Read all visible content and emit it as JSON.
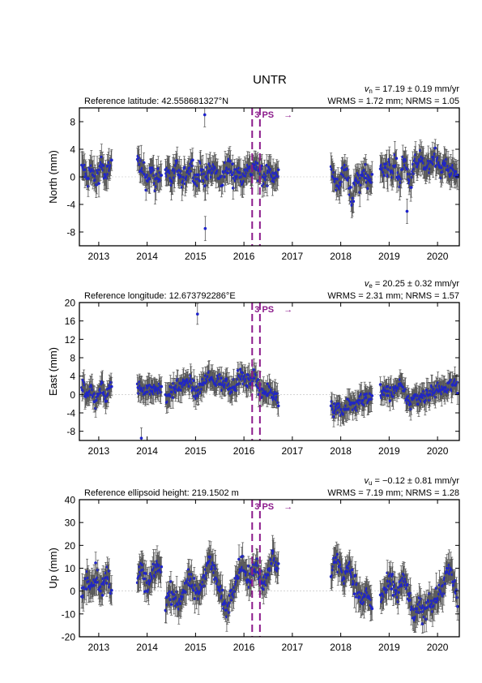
{
  "station": "UNTR",
  "colors": {
    "point_fill": "#1f1fd6",
    "point_edge": "#2233aa",
    "errorbar": "#555555",
    "event_line": "#8b1a8b",
    "zero_line": "#bbbbbb",
    "axis": "#000000"
  },
  "event_label": "3 PS",
  "event_arrow": "→",
  "chart_data": [
    {
      "type": "scatter",
      "component": "north",
      "ylabel": "North (mm)",
      "ref_label": "Reference latitude: 42.558681327°N",
      "velocity_symbol": "v",
      "velocity_subscript": "n",
      "velocity_text": " = 17.19 ± 0.19 mm/yr",
      "stats_text": "WRMS = 1.72 mm; NRMS = 1.05",
      "ylim": [
        -10,
        10
      ],
      "yticks": [
        -8,
        -4,
        0,
        4,
        8
      ],
      "xlim": [
        2012.6,
        2020.45
      ],
      "xticks": [
        2013,
        2014,
        2015,
        2016,
        2017,
        2018,
        2019,
        2020
      ],
      "xticklabels": [
        "2013",
        "2014",
        "2015",
        "2016",
        "2017",
        "2018",
        "2019",
        "2020"
      ],
      "event_lines": [
        2016.17,
        2016.33
      ],
      "data_segments": [
        {
          "start": 2012.65,
          "end": 2013.27,
          "values": [
            1.0,
            1.5,
            0.0,
            -0.5,
            0.8,
            1.0,
            0.2,
            -1.0,
            0.5,
            1.2,
            2.5,
            0.5,
            -0.8,
            1.0,
            2.0,
            1.8
          ]
        },
        {
          "start": 2013.8,
          "end": 2014.3,
          "values": [
            2.5,
            1.5,
            0.5,
            1.0,
            -0.5,
            0.0,
            1.0,
            0.5,
            -1.0,
            0.0,
            0.5,
            0.0
          ]
        },
        {
          "start": 2014.38,
          "end": 2016.72,
          "values": [
            0.5,
            1.0,
            -0.5,
            0.2,
            1.5,
            0.0,
            -1.0,
            0.5,
            1.0,
            2.0,
            0.0,
            -0.5,
            1.2,
            0.5,
            -0.5,
            1.0,
            0.5,
            1.5,
            0.0,
            -0.8,
            0.5,
            1.0,
            2.0,
            0.5,
            0.0,
            1.0,
            -0.5,
            0.8,
            1.5,
            0.5,
            1.0,
            2.0,
            0.0,
            1.0,
            -1.0,
            0.5,
            1.5,
            0.0,
            0.5,
            1.0
          ]
        },
        {
          "start": 2017.8,
          "end": 2018.65,
          "values": [
            1.0,
            0.0,
            -1.5,
            -1.0,
            -0.5,
            0.5,
            1.0,
            -0.5,
            -2.0,
            -3.5,
            -1.0,
            0.0,
            -1.5,
            0.5,
            1.0,
            -0.5,
            0.0,
            -1.0
          ]
        },
        {
          "start": 2018.82,
          "end": 2020.42,
          "values": [
            1.0,
            1.5,
            2.0,
            0.5,
            1.5,
            1.0,
            2.0,
            0.0,
            -0.5,
            1.5,
            2.0,
            0.5,
            -1.0,
            1.0,
            2.0,
            1.5,
            3.0,
            2.0,
            1.0,
            1.5,
            0.5,
            2.5,
            3.0,
            2.0,
            1.0,
            0.5,
            2.0,
            1.5,
            0.0,
            1.0,
            1.0,
            0.0
          ]
        }
      ],
      "outliers": [
        {
          "x": 2015.19,
          "y": 9.0
        },
        {
          "x": 2015.2,
          "y": -7.5
        },
        {
          "x": 2019.37,
          "y": -5.0
        }
      ],
      "noise": 1.8,
      "err": [
        1.2,
        2.2
      ]
    },
    {
      "type": "scatter",
      "component": "east",
      "ylabel": "East (mm)",
      "ref_label": "Reference longitude: 12.673792286°E",
      "velocity_symbol": "v",
      "velocity_subscript": "e",
      "velocity_text": " = 20.25 ± 0.32 mm/yr",
      "stats_text": "WRMS = 2.31 mm; NRMS = 1.57",
      "ylim": [
        -10,
        20
      ],
      "yticks": [
        -8,
        -4,
        0,
        4,
        8,
        12,
        16,
        20
      ],
      "xlim": [
        2012.6,
        2020.45
      ],
      "xticks": [
        2013,
        2014,
        2015,
        2016,
        2017,
        2018,
        2019,
        2020
      ],
      "xticklabels": [
        "2013",
        "2014",
        "2015",
        "2016",
        "2017",
        "2018",
        "2019",
        "2020"
      ],
      "event_lines": [
        2016.17,
        2016.33
      ],
      "data_segments": [
        {
          "start": 2012.65,
          "end": 2013.27,
          "values": [
            0.5,
            1.5,
            0.0,
            -1.0,
            0.5,
            1.0,
            -0.5,
            -1.5,
            0.0,
            1.0,
            2.0,
            0.0,
            -1.0,
            0.5,
            1.5,
            1.0
          ]
        },
        {
          "start": 2013.8,
          "end": 2014.3,
          "values": [
            1.0,
            2.0,
            1.0,
            0.5,
            1.5,
            2.0,
            1.0,
            0.5,
            1.5,
            1.0,
            2.0,
            1.0
          ]
        },
        {
          "start": 2014.38,
          "end": 2016.72,
          "values": [
            -1.0,
            0.0,
            1.0,
            0.5,
            2.0,
            1.5,
            2.5,
            2.0,
            3.0,
            2.0,
            1.0,
            0.0,
            1.5,
            2.5,
            3.0,
            4.0,
            3.0,
            2.5,
            3.5,
            2.5,
            2.0,
            3.0,
            2.0,
            1.5,
            2.5,
            3.0,
            4.0,
            3.5,
            2.5,
            3.0,
            4.0,
            3.5,
            2.0,
            1.0,
            0.5,
            0.0,
            1.0,
            -0.5,
            0.0,
            -1.0
          ]
        },
        {
          "start": 2017.8,
          "end": 2018.65,
          "values": [
            -2.0,
            -3.0,
            -3.5,
            -2.5,
            -3.0,
            -4.0,
            -3.0,
            -2.0,
            -1.5,
            -2.5,
            -3.0,
            -2.0,
            -1.0,
            -1.5,
            -0.5,
            -1.0,
            0.0,
            -0.5
          ]
        },
        {
          "start": 2018.82,
          "end": 2020.42,
          "values": [
            0.5,
            0.0,
            0.5,
            1.0,
            0.0,
            0.5,
            1.5,
            1.0,
            2.0,
            1.0,
            0.0,
            -1.0,
            -2.0,
            -1.0,
            -0.5,
            -1.0,
            -0.5,
            0.0,
            -0.5,
            0.5,
            0.0,
            1.0,
            0.5,
            1.5,
            1.0,
            0.5,
            1.0,
            2.0,
            2.5,
            1.5,
            2.5,
            1.0
          ]
        }
      ],
      "outliers": [
        {
          "x": 2015.04,
          "y": 17.5
        },
        {
          "x": 2013.88,
          "y": -9.5
        }
      ],
      "noise": 2.0,
      "err": [
        1.6,
        2.8
      ]
    },
    {
      "type": "scatter",
      "component": "up",
      "ylabel": "Up (mm)",
      "ref_label": "Reference ellipsoid height: 219.1502 m",
      "velocity_symbol": "v",
      "velocity_subscript": "u",
      "velocity_text": " = −0.12 ± 0.81 mm/yr",
      "stats_text": "WRMS = 7.19 mm; NRMS = 1.28",
      "ylim": [
        -20,
        40
      ],
      "yticks": [
        -20,
        -10,
        0,
        10,
        20,
        30,
        40
      ],
      "xlim": [
        2012.6,
        2020.45
      ],
      "xticks": [
        2013,
        2014,
        2015,
        2016,
        2017,
        2018,
        2019,
        2020
      ],
      "xticklabels": [
        "2013",
        "2014",
        "2015",
        "2016",
        "2017",
        "2018",
        "2019",
        "2020"
      ],
      "event_lines": [
        2016.17,
        2016.33
      ],
      "data_segments": [
        {
          "start": 2012.65,
          "end": 2013.27,
          "values": [
            -2.0,
            0.0,
            3.0,
            6.0,
            4.0,
            2.0,
            5.0,
            8.0,
            6.0,
            3.0,
            0.0,
            2.0,
            5.0,
            8.0,
            4.0,
            1.0
          ]
        },
        {
          "start": 2013.8,
          "end": 2014.3,
          "values": [
            5.0,
            8.0,
            10.0,
            6.0,
            3.0,
            1.0,
            4.0,
            7.0,
            9.0,
            12.0,
            10.0,
            8.0
          ]
        },
        {
          "start": 2014.38,
          "end": 2016.72,
          "values": [
            -5.0,
            -3.0,
            0.0,
            -2.0,
            -6.0,
            -4.0,
            -1.0,
            2.0,
            5.0,
            3.0,
            1.0,
            -2.0,
            0.0,
            5.0,
            10.0,
            14.0,
            12.0,
            8.0,
            3.0,
            -1.0,
            -5.0,
            -8.0,
            -4.0,
            0.0,
            5.0,
            8.0,
            12.0,
            10.0,
            6.0,
            4.0,
            8.0,
            12.0,
            10.0,
            5.0,
            3.0,
            8.0,
            12.0,
            15.0,
            10.0,
            8.0
          ]
        },
        {
          "start": 2017.8,
          "end": 2018.65,
          "values": [
            8.0,
            12.0,
            15.0,
            12.0,
            10.0,
            5.0,
            8.0,
            12.0,
            10.0,
            6.0,
            3.0,
            0.0,
            -3.0,
            -5.0,
            -2.0,
            0.0,
            -4.0,
            -6.0
          ]
        },
        {
          "start": 2018.82,
          "end": 2020.42,
          "values": [
            -4.0,
            -2.0,
            0.0,
            2.0,
            4.0,
            2.0,
            0.0,
            -2.0,
            2.0,
            5.0,
            3.0,
            0.0,
            -5.0,
            -10.0,
            -12.0,
            -8.0,
            -6.0,
            -10.0,
            -8.0,
            -5.0,
            -3.0,
            -6.0,
            -4.0,
            -2.0,
            0.0,
            2.0,
            5.0,
            8.0,
            10.0,
            5.0,
            0.0,
            -3.0
          ]
        }
      ],
      "outliers": [],
      "noise": 5.5,
      "err": [
        4.0,
        7.0
      ]
    }
  ]
}
